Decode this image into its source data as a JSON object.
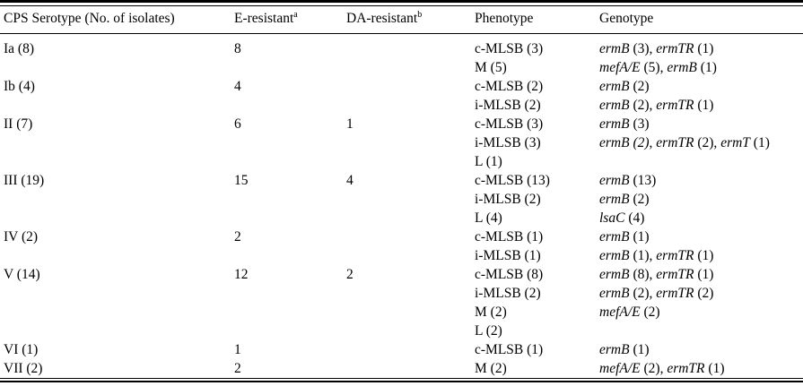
{
  "table": {
    "header": {
      "columns": [
        {
          "label": "CPS Serotype (No. of isolates)",
          "sup": ""
        },
        {
          "label": "E-resistant",
          "sup": "a"
        },
        {
          "label": "DA-resistant",
          "sup": "b"
        },
        {
          "label": "Phenotype",
          "sup": ""
        },
        {
          "label": "Genotype",
          "sup": ""
        }
      ]
    },
    "groups": [
      {
        "serotype": "Ia (8)",
        "e_resistant": "8",
        "da_resistant": "",
        "lines": [
          {
            "phenotype": "c-MLSB (3)",
            "genotype": [
              {
                "t": "ermB",
                "i": true
              },
              {
                "t": " (3), ",
                "i": false
              },
              {
                "t": "ermTR",
                "i": true
              },
              {
                "t": " (1)",
                "i": false
              }
            ]
          },
          {
            "phenotype": "M (5)",
            "genotype": [
              {
                "t": "mefA/E",
                "i": true
              },
              {
                "t": " (5), ",
                "i": false
              },
              {
                "t": "ermB",
                "i": true
              },
              {
                "t": " (1)",
                "i": false
              }
            ]
          }
        ]
      },
      {
        "serotype": "Ib (4)",
        "e_resistant": "4",
        "da_resistant": "",
        "lines": [
          {
            "phenotype": "c-MLSB (2)",
            "genotype": [
              {
                "t": "ermB",
                "i": true
              },
              {
                "t": " (2)",
                "i": false
              }
            ]
          },
          {
            "phenotype": "i-MLSB (2)",
            "genotype": [
              {
                "t": "ermB",
                "i": true
              },
              {
                "t": " (2), ",
                "i": false
              },
              {
                "t": "ermTR",
                "i": true
              },
              {
                "t": " (1)",
                "i": false
              }
            ]
          }
        ]
      },
      {
        "serotype": "II (7)",
        "e_resistant": "6",
        "da_resistant": "1",
        "lines": [
          {
            "phenotype": "c-MLSB (3)",
            "genotype": [
              {
                "t": "ermB",
                "i": true
              },
              {
                "t": " (3)",
                "i": false
              }
            ]
          },
          {
            "phenotype": "i-MLSB (3)",
            "genotype": [
              {
                "t": "ermB (2)",
                "i": true
              },
              {
                "t": ", ",
                "i": false
              },
              {
                "t": "ermTR",
                "i": true
              },
              {
                "t": " (2), ",
                "i": false
              },
              {
                "t": "ermT",
                "i": true
              },
              {
                "t": " (1)",
                "i": false
              }
            ]
          },
          {
            "phenotype": "L (1)",
            "genotype": []
          }
        ]
      },
      {
        "serotype": "III (19)",
        "e_resistant": "15",
        "da_resistant": "4",
        "lines": [
          {
            "phenotype": "c-MLSB (13)",
            "genotype": [
              {
                "t": "ermB",
                "i": true
              },
              {
                "t": " (13)",
                "i": false
              }
            ]
          },
          {
            "phenotype": "i-MLSB (2)",
            "genotype": [
              {
                "t": "ermB",
                "i": true
              },
              {
                "t": " (2)",
                "i": false
              }
            ]
          },
          {
            "phenotype": "L (4)",
            "genotype": [
              {
                "t": "lsaC",
                "i": true
              },
              {
                "t": " (4)",
                "i": false
              }
            ]
          }
        ]
      },
      {
        "serotype": "IV (2)",
        "e_resistant": "2",
        "da_resistant": "",
        "lines": [
          {
            "phenotype": "c-MLSB (1)",
            "genotype": [
              {
                "t": "ermB",
                "i": true
              },
              {
                "t": " (1)",
                "i": false
              }
            ]
          },
          {
            "phenotype": "i-MLSB (1)",
            "genotype": [
              {
                "t": "ermB",
                "i": true
              },
              {
                "t": " (1), ",
                "i": false
              },
              {
                "t": "ermTR",
                "i": true
              },
              {
                "t": " (1)",
                "i": false
              }
            ]
          }
        ]
      },
      {
        "serotype": "V (14)",
        "e_resistant": "12",
        "da_resistant": "2",
        "lines": [
          {
            "phenotype": "c-MLSB (8)",
            "genotype": [
              {
                "t": "ermB",
                "i": true
              },
              {
                "t": " (8), ",
                "i": false
              },
              {
                "t": "ermTR",
                "i": true
              },
              {
                "t": " (1)",
                "i": false
              }
            ]
          },
          {
            "phenotype": "i-MLSB (2)",
            "genotype": [
              {
                "t": "ermB",
                "i": true
              },
              {
                "t": " (2), ",
                "i": false
              },
              {
                "t": "ermTR",
                "i": true
              },
              {
                "t": " (2)",
                "i": false
              }
            ]
          },
          {
            "phenotype": "M (2)",
            "genotype": [
              {
                "t": "mefA/E",
                "i": true
              },
              {
                "t": " (2)",
                "i": false
              }
            ]
          },
          {
            "phenotype": "L (2)",
            "genotype": []
          }
        ]
      },
      {
        "serotype": "VI (1)",
        "e_resistant": "1",
        "da_resistant": "",
        "lines": [
          {
            "phenotype": "c-MLSB (1)",
            "genotype": [
              {
                "t": "ermB",
                "i": true
              },
              {
                "t": " (1)",
                "i": false
              }
            ]
          }
        ]
      },
      {
        "serotype": "VII (2)",
        "e_resistant": "2",
        "da_resistant": "",
        "lines": [
          {
            "phenotype": "M (2)",
            "genotype": [
              {
                "t": "mefA/E",
                "i": true
              },
              {
                "t": " (2), ",
                "i": false
              },
              {
                "t": "ermTR",
                "i": true
              },
              {
                "t": " (1)",
                "i": false
              }
            ]
          }
        ]
      }
    ]
  }
}
